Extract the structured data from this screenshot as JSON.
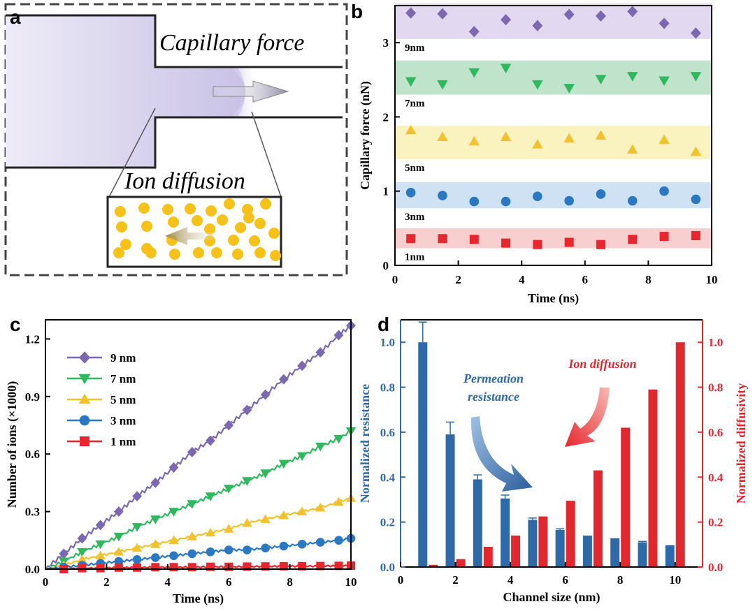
{
  "panels": {
    "a": {
      "letter": "a",
      "callout_top": "Capillary force",
      "callout_bottom": "Ion diffusion"
    },
    "b": {
      "letter": "b"
    },
    "c": {
      "letter": "c"
    },
    "d": {
      "letter": "d"
    }
  },
  "colors": {
    "purple": "#7b68b0",
    "green": "#2fb85e",
    "yellow": "#f2c12e",
    "blue": "#2a78c2",
    "red": "#e8262d",
    "bar_blue": "#2e6aa8",
    "bar_red": "#e0282e",
    "band_purple": "#e2d8ef",
    "band_green": "#bfe3cb",
    "band_yellow": "#fbf3bf",
    "band_blue": "#cfe2f3",
    "band_red": "#f7cfcf",
    "ion_yellow": "#f6c21a",
    "fluid": "#d9d4ee"
  },
  "chart_data": [
    {
      "id": "b",
      "type": "scatter",
      "xlabel": "Time (ns)",
      "ylabel": "Capillary force (nN)",
      "xlim": [
        0,
        10
      ],
      "ylim": [
        0,
        3.5
      ],
      "xticks": [
        0,
        2,
        4,
        6,
        8,
        10
      ],
      "yticks": [
        0,
        1,
        2,
        3
      ],
      "x": [
        0.5,
        1.5,
        2.5,
        3.5,
        4.5,
        5.5,
        6.5,
        7.5,
        8.5,
        9.5
      ],
      "series": [
        {
          "name": "9nm",
          "marker": "diamond",
          "color": "#7b68b0",
          "band_color": "#e2d8ef",
          "band": [
            3.05,
            3.53
          ],
          "values": [
            3.4,
            3.39,
            3.15,
            3.31,
            3.23,
            3.38,
            3.36,
            3.42,
            3.26,
            3.13
          ]
        },
        {
          "name": "7nm",
          "marker": "triangle-down",
          "color": "#2fb85e",
          "band_color": "#bfe3cb",
          "band": [
            2.3,
            2.76
          ],
          "values": [
            2.48,
            2.44,
            2.6,
            2.66,
            2.44,
            2.39,
            2.51,
            2.55,
            2.49,
            2.55
          ]
        },
        {
          "name": "5nm",
          "marker": "triangle-up",
          "color": "#f2c12e",
          "band_color": "#fbf3bf",
          "band": [
            1.43,
            1.88
          ],
          "values": [
            1.82,
            1.73,
            1.67,
            1.73,
            1.63,
            1.71,
            1.75,
            1.56,
            1.69,
            1.53
          ]
        },
        {
          "name": "3nm",
          "marker": "circle",
          "color": "#2a78c2",
          "band_color": "#cfe2f3",
          "band": [
            0.77,
            1.12
          ],
          "values": [
            0.98,
            0.94,
            0.86,
            0.86,
            0.93,
            0.87,
            0.96,
            0.87,
            1.0,
            0.89
          ]
        },
        {
          "name": "1nm",
          "marker": "square",
          "color": "#e8262d",
          "band_color": "#f7cfcf",
          "band": [
            0.23,
            0.5
          ],
          "values": [
            0.36,
            0.36,
            0.35,
            0.3,
            0.28,
            0.31,
            0.28,
            0.35,
            0.39,
            0.4
          ]
        }
      ]
    },
    {
      "id": "c",
      "type": "line",
      "xlabel": "Time (ns)",
      "ylabel": "Number of ions (×1000)",
      "xlim": [
        0,
        10
      ],
      "ylim": [
        0,
        1.3
      ],
      "xticks": [
        0,
        2,
        4,
        6,
        8,
        10
      ],
      "yticks": [
        0.0,
        0.3,
        0.6,
        0.9,
        1.2
      ],
      "ytick_labels": [
        "0.0",
        "0.3",
        "0.6",
        "0.9",
        "1.2"
      ],
      "legend_position": "top-left",
      "series": [
        {
          "name": "9 nm",
          "marker": "diamond",
          "color": "#7b68b0",
          "x": [
            0,
            0.6,
            1.2,
            1.8,
            2.4,
            3.0,
            3.6,
            4.2,
            4.8,
            5.4,
            6.0,
            6.6,
            7.2,
            7.8,
            8.4,
            9.0,
            9.6,
            10.0
          ],
          "y": [
            0.0,
            0.08,
            0.16,
            0.23,
            0.3,
            0.38,
            0.45,
            0.53,
            0.61,
            0.67,
            0.75,
            0.83,
            0.91,
            0.99,
            1.06,
            1.13,
            1.22,
            1.27
          ]
        },
        {
          "name": "7 nm",
          "marker": "triangle-down",
          "color": "#2fb85e",
          "x": [
            0,
            0.6,
            1.2,
            1.8,
            2.4,
            3.0,
            3.6,
            4.2,
            4.8,
            5.4,
            6.0,
            6.6,
            7.2,
            7.8,
            8.4,
            9.0,
            9.6,
            10.0
          ],
          "y": [
            0.0,
            0.04,
            0.09,
            0.13,
            0.17,
            0.22,
            0.26,
            0.3,
            0.34,
            0.38,
            0.42,
            0.46,
            0.5,
            0.55,
            0.59,
            0.64,
            0.68,
            0.72
          ]
        },
        {
          "name": "5 nm",
          "marker": "triangle-up",
          "color": "#f2c12e",
          "x": [
            0,
            0.6,
            1.2,
            1.8,
            2.4,
            3.0,
            3.6,
            4.2,
            4.8,
            5.4,
            6.0,
            6.6,
            7.2,
            7.8,
            8.4,
            9.0,
            9.6,
            10.0
          ],
          "y": [
            0.0,
            0.02,
            0.05,
            0.07,
            0.09,
            0.11,
            0.13,
            0.15,
            0.17,
            0.19,
            0.21,
            0.24,
            0.26,
            0.28,
            0.3,
            0.32,
            0.35,
            0.37
          ]
        },
        {
          "name": "3 nm",
          "marker": "circle",
          "color": "#2a78c2",
          "x": [
            0,
            0.6,
            1.2,
            1.8,
            2.4,
            3.0,
            3.6,
            4.2,
            4.8,
            5.4,
            6.0,
            6.6,
            7.2,
            7.8,
            8.4,
            9.0,
            9.6,
            10.0
          ],
          "y": [
            0.0,
            0.01,
            0.02,
            0.03,
            0.04,
            0.05,
            0.06,
            0.07,
            0.08,
            0.09,
            0.1,
            0.1,
            0.11,
            0.12,
            0.13,
            0.14,
            0.15,
            0.16
          ]
        },
        {
          "name": "1 nm",
          "marker": "square",
          "color": "#e8262d",
          "x": [
            0,
            0.6,
            1.2,
            1.8,
            2.4,
            3.0,
            3.6,
            4.2,
            4.8,
            5.4,
            6.0,
            6.6,
            7.2,
            7.8,
            8.4,
            9.0,
            9.6,
            10.0
          ],
          "y": [
            0.0,
            0.0,
            0.005,
            0.005,
            0.008,
            0.008,
            0.01,
            0.01,
            0.01,
            0.012,
            0.012,
            0.013,
            0.014,
            0.015,
            0.015,
            0.016,
            0.017,
            0.018
          ]
        }
      ]
    },
    {
      "id": "d",
      "type": "bar",
      "xlabel": "Channel size (nm)",
      "ylabel_left": "Normalized resistance",
      "ylabel_right": "Normalized diffusivity",
      "xlim": [
        0,
        11
      ],
      "ylim_left": [
        0,
        1.1
      ],
      "ylim_right": [
        0,
        1.1
      ],
      "xticks": [
        0,
        2,
        4,
        6,
        8,
        10
      ],
      "yticks_left": [
        0.0,
        0.2,
        0.4,
        0.6,
        0.8,
        1.0
      ],
      "yticks_right": [
        0.0,
        0.2,
        0.4,
        0.6,
        0.8,
        1.0
      ],
      "ytick_labels": [
        "0.0",
        "0.2",
        "0.4",
        "0.6",
        "0.8",
        "1.0"
      ],
      "categories": [
        1,
        2,
        3,
        4,
        5,
        6,
        7,
        8,
        9,
        10
      ],
      "series": [
        {
          "name": "Permeation resistance",
          "axis": "left",
          "color": "#2e6aa8",
          "values": [
            1.0,
            0.59,
            0.39,
            0.305,
            0.21,
            0.165,
            0.14,
            0.128,
            0.11,
            0.097
          ],
          "errors": [
            0.09,
            0.055,
            0.02,
            0.015,
            0.008,
            0.005,
            0.0,
            0.0,
            0.004,
            0.0
          ]
        },
        {
          "name": "Ion diffusion",
          "axis": "right",
          "color": "#e0282e",
          "values": [
            0.01,
            0.035,
            0.09,
            0.14,
            0.225,
            0.295,
            0.43,
            0.62,
            0.79,
            1.0
          ]
        }
      ],
      "annotations": {
        "resistance": [
          "Permeation",
          "resistance"
        ],
        "diffusion": "Ion diffusion"
      }
    }
  ]
}
